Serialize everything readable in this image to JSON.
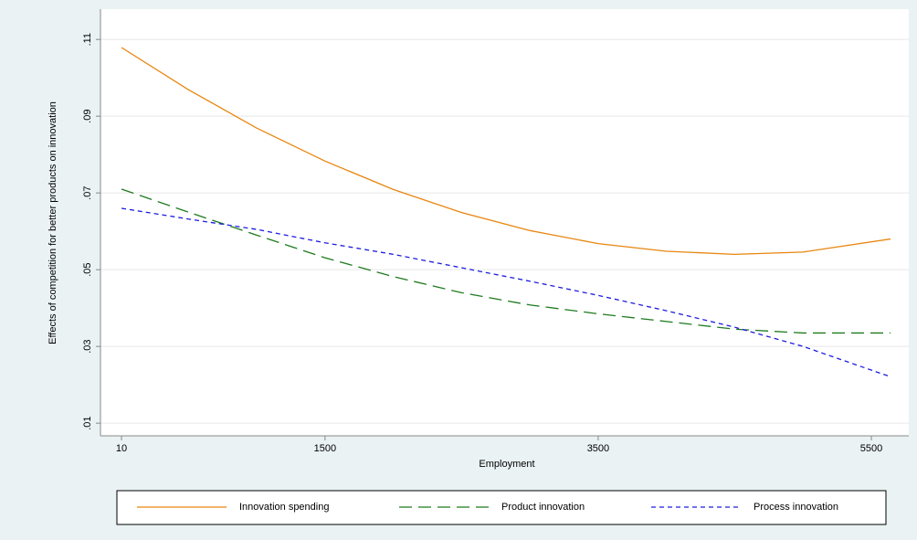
{
  "chart_data": {
    "type": "line",
    "ylabel": "Effects of competition for better products on innovation",
    "xlabel": "Employment",
    "x": [
      10,
      500,
      1000,
      1500,
      2000,
      2500,
      3000,
      3500,
      4000,
      4500,
      5000,
      5640
    ],
    "series": [
      {
        "name": "Innovation spending",
        "color": "#e8860f",
        "linestyle": "solid",
        "values": [
          0.1079,
          0.0969,
          0.0869,
          0.0783,
          0.0709,
          0.0649,
          0.0602,
          0.0568,
          0.0548,
          0.054,
          0.0546,
          0.058
        ]
      },
      {
        "name": "Product innovation",
        "color": "#1e7a1e",
        "linestyle": "dashed",
        "values": [
          0.071,
          0.065,
          0.059,
          0.0531,
          0.0482,
          0.044,
          0.0408,
          0.0385,
          0.0365,
          0.0345,
          0.0335,
          0.0335
        ]
      },
      {
        "name": "Process innovation",
        "color": "#1c1ce0",
        "linestyle": "dotted",
        "values": [
          0.066,
          0.0632,
          0.0605,
          0.057,
          0.054,
          0.0505,
          0.047,
          0.0433,
          0.0393,
          0.035,
          0.03,
          0.0221
        ]
      }
    ],
    "xlim": [
      -144,
      5774
    ],
    "ylim": [
      0.0067,
      0.1179
    ],
    "xticks": [
      10,
      1500,
      3500,
      5500
    ],
    "yticks": [
      {
        "value": 0.01,
        "label": ".01"
      },
      {
        "value": 0.03,
        "label": ".03"
      },
      {
        "value": 0.05,
        "label": ".05"
      },
      {
        "value": 0.07,
        "label": ".07"
      },
      {
        "value": 0.09,
        "label": ".09"
      },
      {
        "value": 0.11,
        "label": ".11"
      }
    ],
    "grid": true,
    "legend": "bottom"
  }
}
